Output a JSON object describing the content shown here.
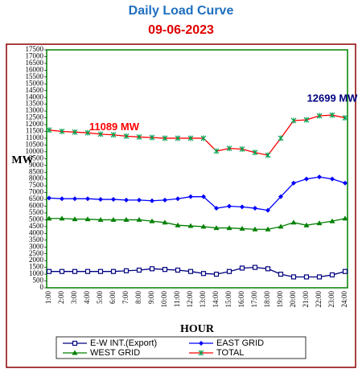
{
  "chart_data": {
    "type": "line",
    "title": "Daily Load Curve",
    "subtitle": "09-06-2023",
    "x_label": "HOUR",
    "y_label": "MW",
    "categories": [
      "1:00",
      "2:00",
      "3:00",
      "4:00",
      "5:00",
      "6:00",
      "7:00",
      "8:00",
      "9:00",
      "10:00",
      "11:00",
      "12:00",
      "13:00",
      "14:00",
      "15:00",
      "16:00",
      "17:00",
      "18:00",
      "19:00",
      "20:00",
      "21:00",
      "22:00",
      "23:00",
      "24:00"
    ],
    "series": [
      {
        "name": "E-W INT.(Export)",
        "color": "#000080",
        "marker": "square",
        "values": [
          1200,
          1200,
          1200,
          1200,
          1200,
          1200,
          1250,
          1300,
          1400,
          1350,
          1300,
          1200,
          1050,
          1000,
          1200,
          1450,
          1500,
          1400,
          1000,
          800,
          800,
          800,
          950,
          1200
        ]
      },
      {
        "name": "EAST GRID",
        "color": "#0000ff",
        "marker": "diamond",
        "values": [
          6600,
          6550,
          6550,
          6550,
          6500,
          6500,
          6450,
          6450,
          6400,
          6450,
          6550,
          6700,
          6700,
          5850,
          6000,
          5950,
          5850,
          5700,
          6700,
          7700,
          8000,
          8150,
          8000,
          7700
        ]
      },
      {
        "name": "WEST GRID",
        "color": "#008000",
        "marker": "triangle",
        "values": [
          5100,
          5100,
          5050,
          5050,
          5000,
          5000,
          5000,
          5000,
          4900,
          4800,
          4600,
          4550,
          4500,
          4400,
          4400,
          4350,
          4300,
          4300,
          4500,
          4800,
          4600,
          4750,
          4900,
          5100
        ]
      },
      {
        "name": "TOTAL",
        "color": "#ff0000",
        "marker": "star",
        "marker_color": "#00a050",
        "values": [
          11600,
          11500,
          11450,
          11400,
          11300,
          11250,
          11150,
          11089,
          11050,
          11000,
          11000,
          11000,
          11000,
          10050,
          10250,
          10200,
          9950,
          9750,
          11000,
          12300,
          12350,
          12650,
          12699,
          12500
        ]
      }
    ],
    "annotations": [
      {
        "text": "11089 MW",
        "color": "#ff0000",
        "series": 3,
        "index": 7
      },
      {
        "text": "12699 MW",
        "color": "#000080",
        "series": 3,
        "index": 22
      }
    ],
    "ylim": [
      0,
      17500
    ],
    "yticks": [
      0,
      500,
      1000,
      1500,
      2000,
      2500,
      3000,
      3500,
      4000,
      4500,
      5000,
      5500,
      6000,
      6500,
      7000,
      7500,
      8000,
      8500,
      9000,
      9500,
      10000,
      10500,
      11000,
      11500,
      12000,
      12500,
      13000,
      13500,
      14000,
      14500,
      15000,
      15500,
      16000,
      16500,
      17000,
      17500
    ],
    "grid": false,
    "legend": "bottom"
  }
}
